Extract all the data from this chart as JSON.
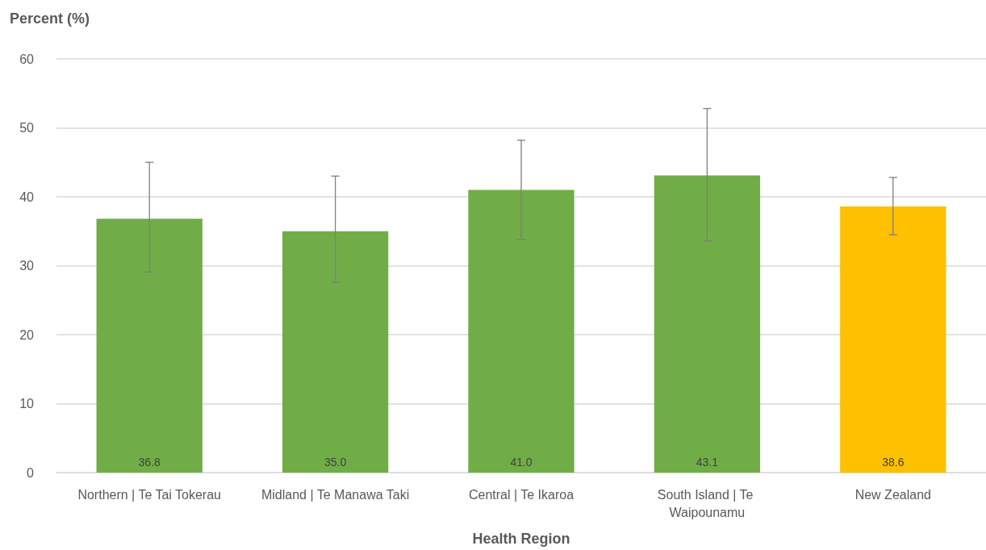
{
  "chart_data": {
    "type": "bar",
    "ylabel": "Percent (%)",
    "xlabel": "Health Region",
    "categories": [
      "Northern | Te Tai Tokerau",
      "Midland | Te Manawa Taki",
      "Central | Te Ikaroa",
      "South Island | Te Waipounamu",
      "New Zealand"
    ],
    "values": [
      36.8,
      35.0,
      41.0,
      43.1,
      38.6
    ],
    "value_labels": [
      "36.8",
      "35.0",
      "41.0",
      "43.1",
      "38.6"
    ],
    "colors": [
      "#70ad47",
      "#70ad47",
      "#70ad47",
      "#70ad47",
      "#ffc000"
    ],
    "errors": [
      [
        29.1,
        45.0
      ],
      [
        27.6,
        43.0
      ],
      [
        33.8,
        48.2
      ],
      [
        33.6,
        52.8
      ],
      [
        34.5,
        42.8
      ]
    ],
    "ylim": [
      0,
      60
    ],
    "yticks": [
      0,
      10,
      20,
      30,
      40,
      50,
      60
    ],
    "grid": "y"
  }
}
